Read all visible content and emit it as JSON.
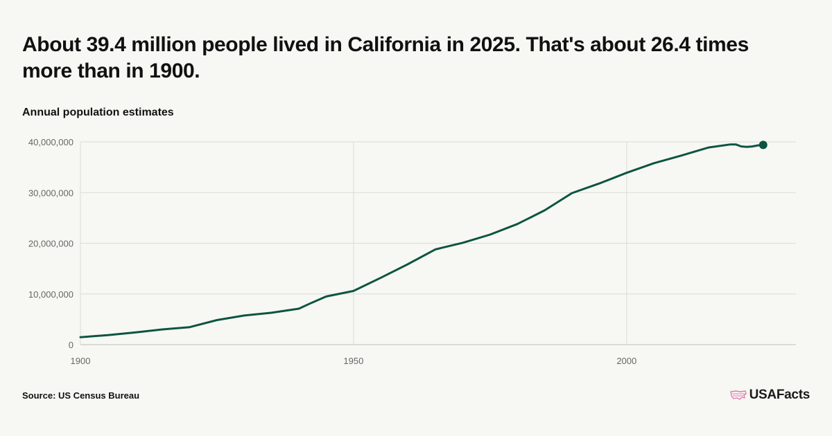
{
  "header": {
    "title": "About 39.4 million people lived in California in 2025. That's about 26.4 times more than in 1900.",
    "subtitle": "Annual population estimates"
  },
  "footer": {
    "source": "Source: US Census Bureau",
    "brand": "USAFacts",
    "brand_color": "#e07bb0"
  },
  "chart_data": {
    "type": "line",
    "title": "About 39.4 million people lived in California in 2025. That's about 26.4 times more than in 1900.",
    "subtitle": "Annual population estimates",
    "xlabel": "",
    "ylabel": "",
    "xlim": [
      1900,
      2031
    ],
    "ylim": [
      0,
      40000000
    ],
    "y_ticks": [
      0,
      10000000,
      20000000,
      30000000,
      40000000
    ],
    "y_tick_labels": [
      "0",
      "10,000,000",
      "20,000,000",
      "30,000,000",
      "40,000,000"
    ],
    "x_ticks": [
      1900,
      1950,
      2000
    ],
    "x_tick_labels": [
      "1900",
      "1950",
      "2000"
    ],
    "grid": true,
    "line_color": "#0c5441",
    "series": [
      {
        "x": [
          1900,
          1905,
          1910,
          1915,
          1920,
          1925,
          1930,
          1935,
          1940,
          1942,
          1945,
          1950,
          1955,
          1960,
          1965,
          1970,
          1975,
          1980,
          1985,
          1990,
          1995,
          2000,
          2005,
          2010,
          2015,
          2019,
          2020,
          2021,
          2022,
          2023,
          2024,
          2025
        ],
        "y": [
          1480000,
          1870000,
          2400000,
          3000000,
          3450000,
          4850000,
          5750000,
          6300000,
          7100000,
          8100000,
          9500000,
          10600000,
          13200000,
          15900000,
          18800000,
          20100000,
          21700000,
          23800000,
          26500000,
          29900000,
          31800000,
          33900000,
          35800000,
          37300000,
          38900000,
          39500000,
          39500000,
          39100000,
          39000000,
          39100000,
          39300000,
          39400000
        ]
      }
    ]
  }
}
